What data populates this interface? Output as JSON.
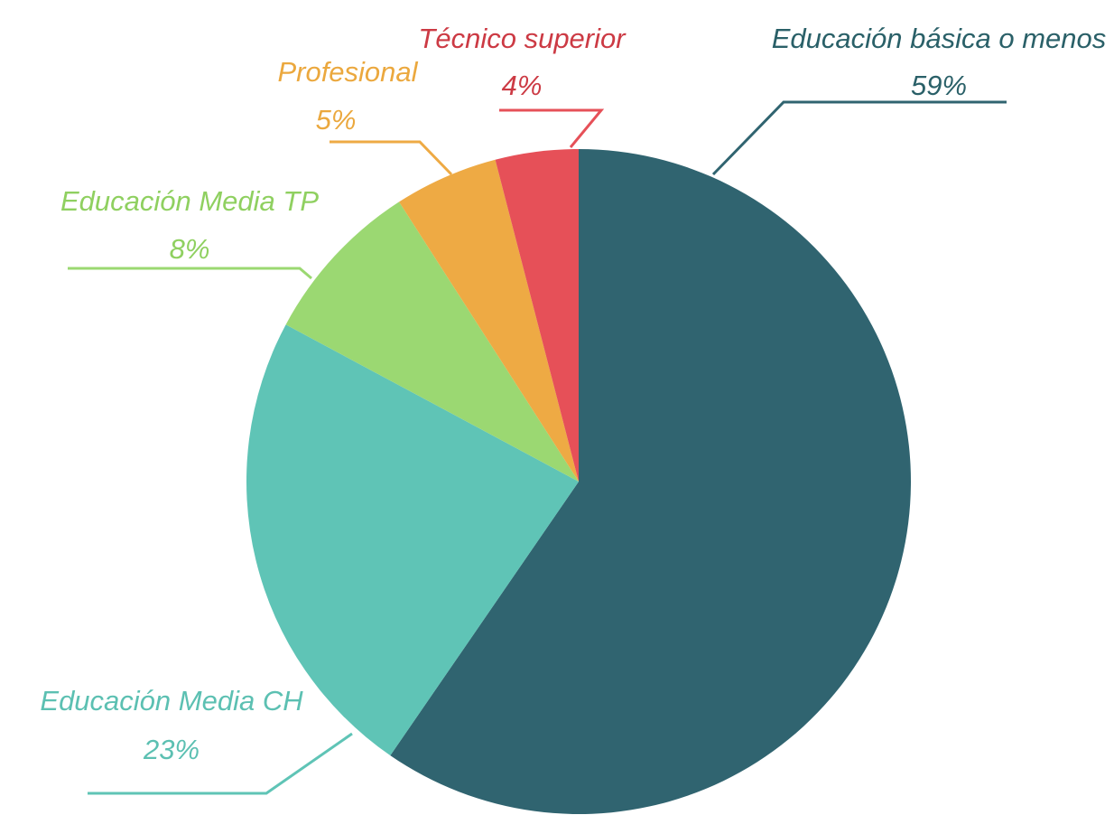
{
  "chart_data": {
    "type": "pie",
    "categories": [
      "Educación básica o menos",
      "Educación Media CH",
      "Educación Media TP",
      "Profesional",
      "Técnico superior"
    ],
    "values": [
      59,
      23,
      8,
      5,
      4
    ],
    "value_labels": [
      "59%",
      "23%",
      "8%",
      "5%",
      "4%"
    ],
    "colors": [
      "#306470",
      "#5fc4b6",
      "#9bd872",
      "#eeaa44",
      "#e65058"
    ]
  }
}
